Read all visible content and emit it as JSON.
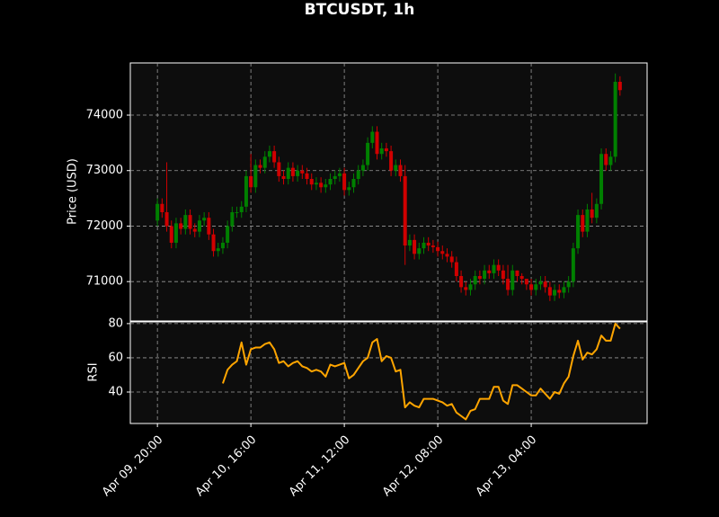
{
  "chart_data": [
    {
      "type": "candlestick",
      "title": "BTCUSDT, 1h",
      "ylabel": "Price (USD)",
      "up_color": "#008000",
      "down_color": "#d00000",
      "grid": true,
      "xlim": [
        -5.8,
        104.8
      ],
      "ylim": [
        70290,
        74940
      ],
      "yticks": [
        71000,
        72000,
        73000,
        74000
      ],
      "xticks": [
        {
          "value": 0,
          "label": "Apr 09, 20:00"
        },
        {
          "value": 20,
          "label": "Apr 10, 16:00"
        },
        {
          "value": 40,
          "label": "Apr 11, 12:00"
        },
        {
          "value": 60,
          "label": "Apr 12, 08:00"
        },
        {
          "value": 80,
          "label": "Apr 13, 04:00"
        }
      ],
      "opens": [
        72100,
        72400,
        72250,
        72000,
        71700,
        72050,
        71950,
        72200,
        71950,
        71900,
        72100,
        72150,
        71850,
        71550,
        71600,
        71700,
        72000,
        72250,
        72250,
        72350,
        72900,
        72700,
        73100,
        73050,
        73250,
        73350,
        73150,
        72900,
        72850,
        73050,
        72900,
        73000,
        72950,
        72850,
        72750,
        72780,
        72700,
        72750,
        72850,
        72900,
        72950,
        72650,
        72700,
        72850,
        73000,
        73100,
        73500,
        73700,
        73300,
        73400,
        73350,
        73000,
        73100,
        72900,
        71650,
        71750,
        71500,
        71600,
        71700,
        71650,
        71620,
        71550,
        71500,
        71450,
        71350,
        71100,
        70900,
        70850,
        70950,
        71100,
        71050,
        71200,
        71150,
        71300,
        71200,
        71050,
        70850,
        71200,
        71100,
        71050,
        70950,
        70850,
        70950,
        71000,
        70900,
        70750,
        70850,
        70800,
        70900,
        71000,
        71600,
        72200,
        71900,
        72300,
        72150,
        72400,
        73300,
        73100,
        73250,
        74600
      ],
      "highs": [
        72500,
        72500,
        73150,
        72100,
        72150,
        72150,
        72300,
        72300,
        72050,
        72200,
        72250,
        72250,
        71950,
        71700,
        71800,
        72100,
        72350,
        72350,
        72450,
        73000,
        73300,
        73200,
        73200,
        73350,
        73450,
        73450,
        73250,
        73000,
        73150,
        73150,
        73100,
        73100,
        73050,
        72950,
        72880,
        72880,
        72850,
        72950,
        73000,
        73050,
        73050,
        72800,
        72950,
        73100,
        73200,
        73600,
        73800,
        73800,
        73500,
        73500,
        73450,
        73200,
        73200,
        73100,
        71850,
        71850,
        71700,
        71800,
        71800,
        71750,
        71720,
        71650,
        71600,
        71550,
        71450,
        71200,
        71000,
        71050,
        71200,
        71200,
        71300,
        71300,
        71400,
        71400,
        71300,
        71300,
        71300,
        71200,
        71150,
        71050,
        71050,
        71050,
        71100,
        71100,
        71000,
        70950,
        70950,
        71000,
        71100,
        71700,
        72300,
        72300,
        72400,
        72600,
        72500,
        73400,
        73400,
        73350,
        74750,
        74700
      ],
      "lows": [
        72000,
        72150,
        71900,
        71600,
        71600,
        71850,
        71850,
        71850,
        71800,
        71800,
        72000,
        71750,
        71450,
        71450,
        71500,
        71600,
        71900,
        72150,
        72150,
        72250,
        72600,
        72600,
        72950,
        72950,
        73150,
        73050,
        72800,
        72750,
        72750,
        72800,
        72800,
        72850,
        72750,
        72650,
        72650,
        72600,
        72600,
        72650,
        72750,
        72800,
        72550,
        72550,
        72600,
        72750,
        72900,
        73000,
        73400,
        73200,
        73200,
        73250,
        72900,
        72900,
        72800,
        71300,
        71550,
        71400,
        71400,
        71500,
        71550,
        71520,
        71450,
        71400,
        71350,
        71250,
        71000,
        70800,
        70750,
        70750,
        70850,
        70950,
        70950,
        71050,
        71050,
        71100,
        70950,
        70750,
        70750,
        71000,
        70950,
        70850,
        70750,
        70750,
        70850,
        70800,
        70650,
        70650,
        70700,
        70700,
        70800,
        70900,
        71500,
        71800,
        71800,
        72050,
        72050,
        72300,
        73000,
        73000,
        73150,
        74350
      ],
      "closes": [
        72400,
        72250,
        72000,
        71700,
        72050,
        71950,
        72200,
        71950,
        71900,
        72100,
        72150,
        71850,
        71550,
        71600,
        71700,
        72000,
        72250,
        72250,
        72350,
        72900,
        72700,
        73100,
        73050,
        73250,
        73350,
        73150,
        72900,
        72850,
        73050,
        72900,
        73000,
        72950,
        72850,
        72750,
        72780,
        72700,
        72750,
        72850,
        72900,
        72950,
        72650,
        72700,
        72850,
        73000,
        73100,
        73500,
        73700,
        73300,
        73400,
        73350,
        73000,
        73100,
        72900,
        71650,
        71750,
        71500,
        71600,
        71700,
        71650,
        71620,
        71550,
        71500,
        71450,
        71350,
        71100,
        70900,
        70850,
        70950,
        71100,
        71050,
        71200,
        71150,
        71300,
        71200,
        71050,
        70850,
        71200,
        71100,
        71050,
        70950,
        70850,
        70950,
        71000,
        70900,
        70750,
        70850,
        70800,
        70900,
        71000,
        71600,
        72200,
        71900,
        72300,
        72150,
        72400,
        73300,
        73100,
        73250,
        74600,
        74450
      ]
    },
    {
      "type": "line",
      "ylabel": "RSI",
      "grid": true,
      "xlim": [
        -5.8,
        104.8
      ],
      "ylim": [
        21.6,
        81
      ],
      "yticks": [
        40,
        60,
        80
      ],
      "xticks": [
        {
          "value": 0,
          "label": "Apr 09, 20:00"
        },
        {
          "value": 20,
          "label": "Apr 10, 16:00"
        },
        {
          "value": 40,
          "label": "Apr 11, 12:00"
        },
        {
          "value": 60,
          "label": "Apr 12, 08:00"
        },
        {
          "value": 80,
          "label": "Apr 13, 04:00"
        }
      ],
      "series": [
        {
          "name": "RSI",
          "color": "#ffa500",
          "values": [
            null,
            null,
            null,
            null,
            null,
            null,
            null,
            null,
            null,
            null,
            null,
            null,
            null,
            null,
            45,
            53,
            56,
            58,
            69,
            56,
            65,
            66,
            66,
            68,
            69,
            65,
            57,
            58,
            55,
            57,
            58,
            55,
            54,
            52,
            53,
            52,
            49,
            56,
            55,
            56,
            57,
            48,
            50,
            54,
            58,
            60,
            69,
            71,
            58,
            61,
            60,
            52,
            53,
            31,
            34,
            32,
            31,
            36,
            36,
            36,
            35,
            34,
            32,
            33,
            28,
            26,
            24,
            29,
            30,
            36,
            36,
            36,
            43,
            43,
            35,
            33,
            44,
            44,
            42,
            40,
            38,
            38,
            42,
            39,
            36,
            40,
            39,
            45,
            49,
            61,
            70,
            59,
            63,
            62,
            65,
            73,
            70,
            70,
            80,
            77
          ]
        }
      ]
    }
  ]
}
